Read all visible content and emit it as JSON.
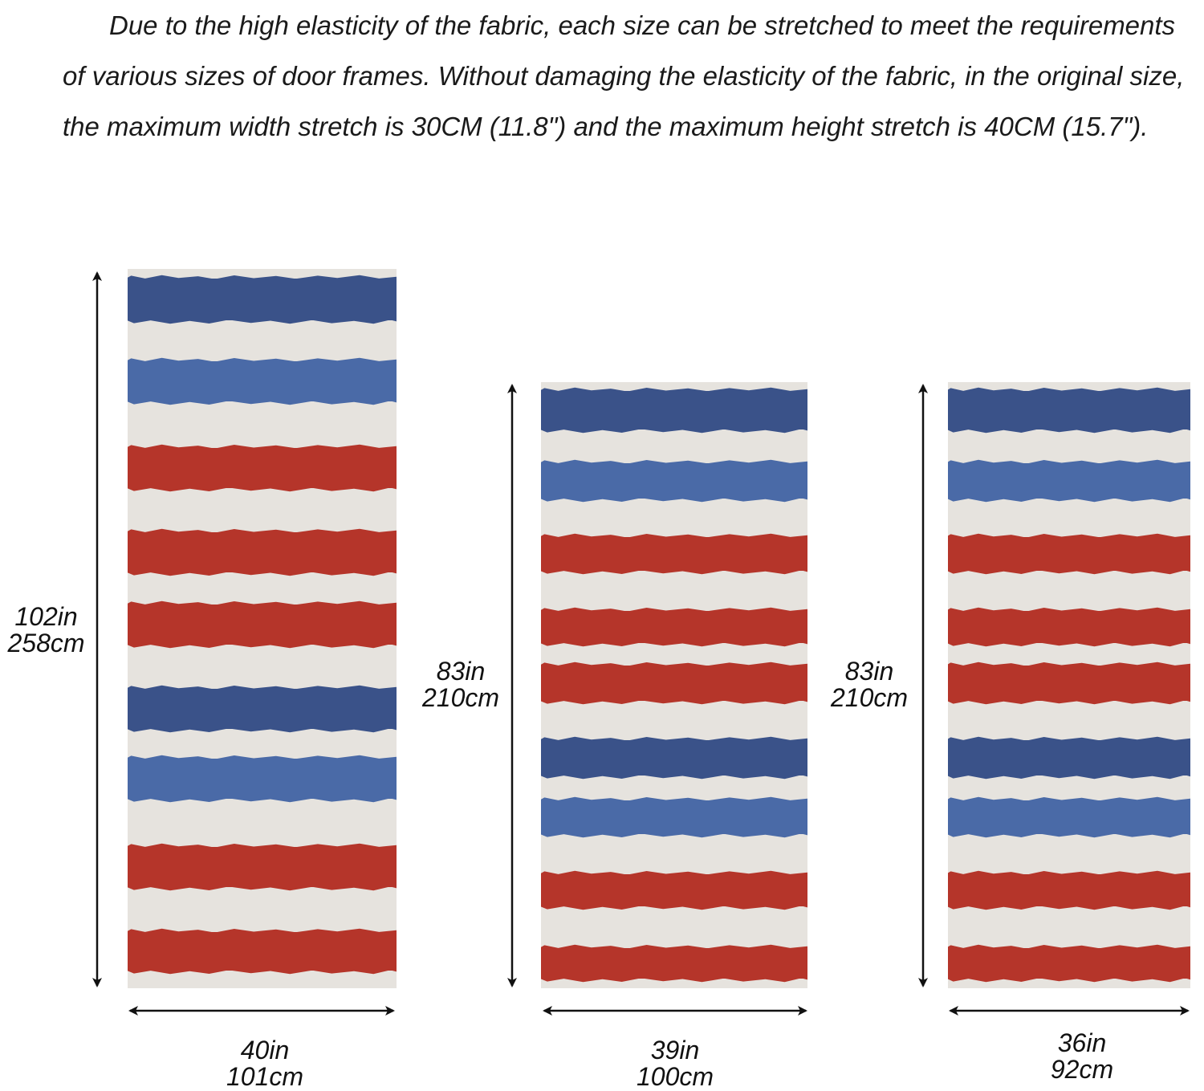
{
  "intro_text": "Due to the high elasticity of the fabric, each size can be stretched to meet the requirements of various sizes of door frames. Without damaging the elasticity of the fabric, in the original size, the maximum width stretch is 30CM (11.8\") and the maximum height stretch is 40CM (15.7\").",
  "colors": {
    "background": "#e6e3de",
    "navy": "#3a5289",
    "blue": "#4a6aa7",
    "red": "#b5352a",
    "text": "#111111"
  },
  "panels": [
    {
      "height_in": "102in",
      "height_cm": "258cm",
      "width_in": "40in",
      "width_cm": "101cm",
      "stripes": [
        "navy",
        "blue",
        "red",
        "red",
        "red",
        "navy",
        "blue",
        "red",
        "red"
      ]
    },
    {
      "height_in": "83in",
      "height_cm": "210cm",
      "width_in": "39in",
      "width_cm": "100cm",
      "stripes": [
        "navy",
        "blue",
        "red",
        "red",
        "red",
        "navy",
        "blue",
        "red",
        "red"
      ]
    },
    {
      "height_in": "83in",
      "height_cm": "210cm",
      "width_in": "36in",
      "width_cm": "92cm",
      "stripes": [
        "navy",
        "blue",
        "red",
        "red",
        "red",
        "navy",
        "blue",
        "red",
        "red"
      ]
    }
  ]
}
